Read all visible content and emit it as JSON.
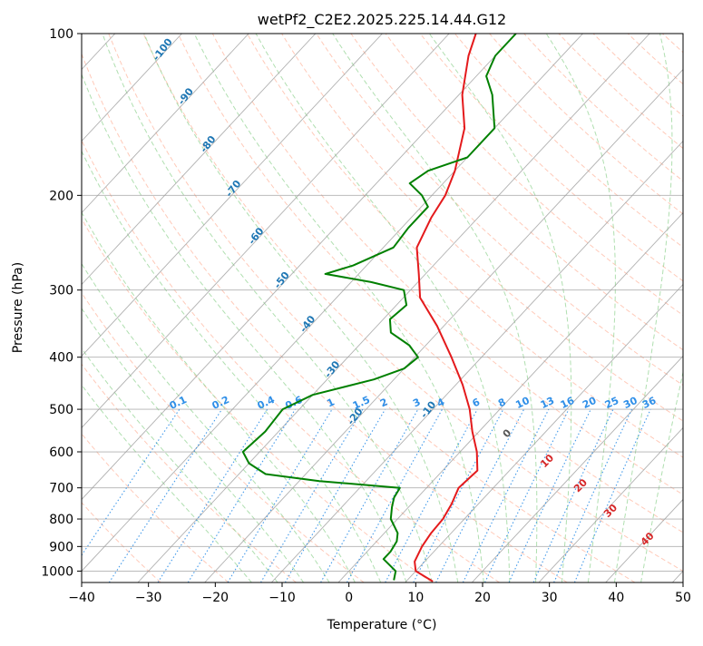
{
  "chart_data": {
    "type": "line",
    "subtype": "skew-t log-p diagram",
    "title": "wetPf2_C2E2.2025.225.14.44.G12",
    "xlabel": "Temperature (°C)",
    "ylabel": "Pressure (hPa)",
    "xlim": [
      -40,
      50
    ],
    "ylim": [
      1050,
      100
    ],
    "y_scale": "log",
    "x_ticks": [
      -40,
      -30,
      -20,
      -10,
      0,
      10,
      20,
      30,
      40,
      50
    ],
    "y_ticks": [
      100,
      200,
      300,
      400,
      500,
      600,
      700,
      800,
      900,
      1000
    ],
    "grid": true,
    "legend": "none",
    "skew_deg_per_log_decade": 75,
    "series": [
      {
        "color": "#e41a1c",
        "values": [
          {
            "p": 1045,
            "t": 14.0
          },
          {
            "p": 1000,
            "t": 10.0
          },
          {
            "p": 960,
            "t": 8.5
          },
          {
            "p": 900,
            "t": 7.5
          },
          {
            "p": 850,
            "t": 7.0
          },
          {
            "p": 800,
            "t": 6.8
          },
          {
            "p": 750,
            "t": 6.0
          },
          {
            "p": 700,
            "t": 4.8
          },
          {
            "p": 650,
            "t": 5.2
          },
          {
            "p": 600,
            "t": 2.5
          },
          {
            "p": 550,
            "t": -1.0
          },
          {
            "p": 500,
            "t": -4.5
          },
          {
            "p": 450,
            "t": -9.0
          },
          {
            "p": 400,
            "t": -14.5
          },
          {
            "p": 350,
            "t": -21.0
          },
          {
            "p": 310,
            "t": -27.5
          },
          {
            "p": 280,
            "t": -31.0
          },
          {
            "p": 250,
            "t": -35.0
          },
          {
            "p": 220,
            "t": -37.0
          },
          {
            "p": 200,
            "t": -38.0
          },
          {
            "p": 180,
            "t": -40.0
          },
          {
            "p": 150,
            "t": -44.5
          },
          {
            "p": 130,
            "t": -49.5
          },
          {
            "p": 110,
            "t": -54.0
          },
          {
            "p": 100,
            "t": -56.0
          }
        ]
      },
      {
        "color": "#008000",
        "values": [
          {
            "p": 1040,
            "t": 8.0
          },
          {
            "p": 1000,
            "t": 7.0
          },
          {
            "p": 950,
            "t": 3.5
          },
          {
            "p": 920,
            "t": 3.5
          },
          {
            "p": 880,
            "t": 3.0
          },
          {
            "p": 850,
            "t": 2.0
          },
          {
            "p": 800,
            "t": -1.0
          },
          {
            "p": 760,
            "t": -2.5
          },
          {
            "p": 730,
            "t": -3.5
          },
          {
            "p": 700,
            "t": -4.0
          },
          {
            "p": 680,
            "t": -17.0
          },
          {
            "p": 660,
            "t": -26.0
          },
          {
            "p": 630,
            "t": -30.0
          },
          {
            "p": 600,
            "t": -32.5
          },
          {
            "p": 550,
            "t": -32.0
          },
          {
            "p": 500,
            "t": -32.5
          },
          {
            "p": 470,
            "t": -30.0
          },
          {
            "p": 440,
            "t": -23.0
          },
          {
            "p": 420,
            "t": -20.0
          },
          {
            "p": 400,
            "t": -19.5
          },
          {
            "p": 380,
            "t": -22.5
          },
          {
            "p": 360,
            "t": -27.0
          },
          {
            "p": 340,
            "t": -29.0
          },
          {
            "p": 320,
            "t": -28.5
          },
          {
            "p": 300,
            "t": -31.0
          },
          {
            "p": 290,
            "t": -37.0
          },
          {
            "p": 280,
            "t": -45.0
          },
          {
            "p": 270,
            "t": -42.0
          },
          {
            "p": 250,
            "t": -38.5
          },
          {
            "p": 230,
            "t": -39.0
          },
          {
            "p": 210,
            "t": -39.0
          },
          {
            "p": 200,
            "t": -41.5
          },
          {
            "p": 190,
            "t": -45.0
          },
          {
            "p": 180,
            "t": -44.0
          },
          {
            "p": 170,
            "t": -40.0
          },
          {
            "p": 150,
            "t": -40.0
          },
          {
            "p": 130,
            "t": -45.0
          },
          {
            "p": 120,
            "t": -48.5
          },
          {
            "p": 110,
            "t": -50.0
          },
          {
            "p": 100,
            "t": -50.0
          }
        ]
      }
    ],
    "reference_lines": {
      "isotherms_label_color": "#1f77b4",
      "isotherm_labels": [
        "-100",
        "-90",
        "-80",
        "-70",
        "-60",
        "-50",
        "-40",
        "-30",
        "-20",
        "-10"
      ],
      "mixing_ratio_color": "#2f8fe8",
      "mixing_ratio_labels": [
        "0.1",
        "0.2",
        "0.4",
        "0.6",
        "1",
        "1.5",
        "2",
        "3",
        "4",
        "6",
        "8",
        "10",
        "13",
        "16",
        "20",
        "25",
        "30",
        "36"
      ],
      "moist_adiabat_labels": [
        "0",
        "10",
        "20",
        "30",
        "40"
      ],
      "moist_adiabat_label_colors": [
        "#555555",
        "#d62728",
        "#d62728",
        "#d62728",
        "#d62728"
      ],
      "dry_adiabat_color": "#ff9f80",
      "moist_adiabat_color": "#8fd18f"
    }
  }
}
